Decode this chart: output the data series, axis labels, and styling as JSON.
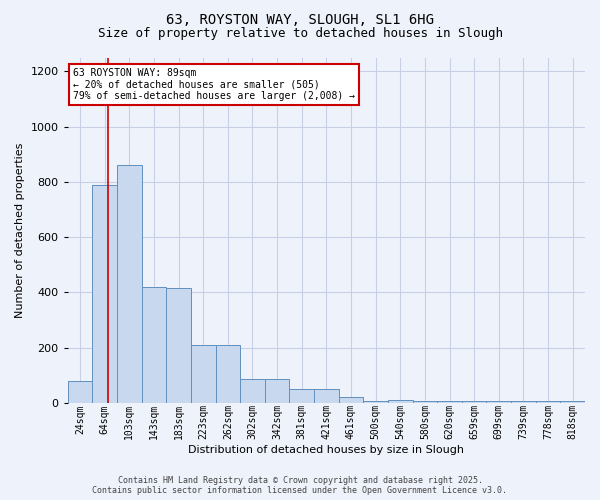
{
  "title_line1": "63, ROYSTON WAY, SLOUGH, SL1 6HG",
  "title_line2": "Size of property relative to detached houses in Slough",
  "xlabel": "Distribution of detached houses by size in Slough",
  "ylabel": "Number of detached properties",
  "categories": [
    "24sqm",
    "64sqm",
    "103sqm",
    "143sqm",
    "183sqm",
    "223sqm",
    "262sqm",
    "302sqm",
    "342sqm",
    "381sqm",
    "421sqm",
    "461sqm",
    "500sqm",
    "540sqm",
    "580sqm",
    "620sqm",
    "659sqm",
    "699sqm",
    "739sqm",
    "778sqm",
    "818sqm"
  ],
  "bar_heights": [
    80,
    790,
    860,
    420,
    415,
    210,
    208,
    85,
    85,
    50,
    50,
    20,
    5,
    10,
    5,
    5,
    5,
    5,
    5,
    5,
    5
  ],
  "bar_color": "#c8d8ee",
  "bar_edge_color": "#6090c0",
  "grid_color": "#c8d0e8",
  "background_color": "#eef2fa",
  "red_line_x": 1.15,
  "annotation_text": "63 ROYSTON WAY: 89sqm\n← 20% of detached houses are smaller (505)\n79% of semi-detached houses are larger (2,008) →",
  "annotation_box_facecolor": "#ffffff",
  "annotation_edge_color": "#cc0000",
  "footer_line1": "Contains HM Land Registry data © Crown copyright and database right 2025.",
  "footer_line2": "Contains public sector information licensed under the Open Government Licence v3.0.",
  "ylim": [
    0,
    1250
  ],
  "yticks": [
    0,
    200,
    400,
    600,
    800,
    1000,
    1200
  ],
  "title_fontsize": 10,
  "subtitle_fontsize": 9,
  "ylabel_fontsize": 8,
  "xlabel_fontsize": 8,
  "tick_fontsize": 7,
  "footer_fontsize": 6
}
